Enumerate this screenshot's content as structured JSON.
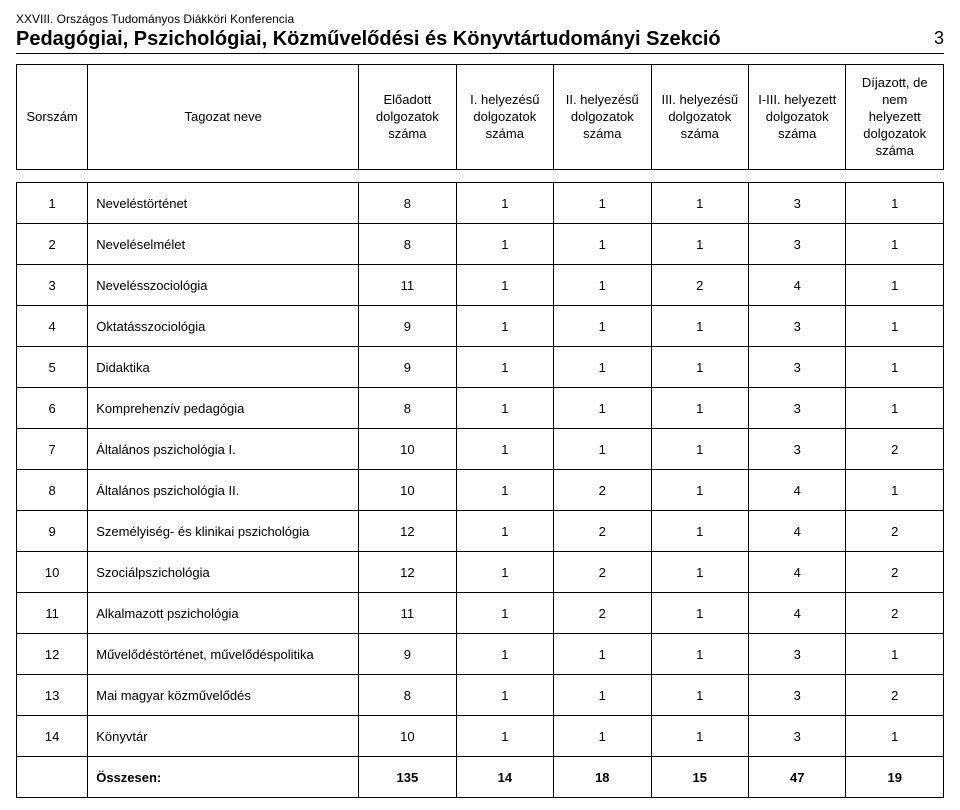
{
  "header": {
    "pre_title": "XXVIII. Országos Tudományos Diákköri Konferencia",
    "title": "Pedagógiai, Pszichológiai, Közművelődési és Könyvtártudományi Szekció",
    "page_number": "3"
  },
  "table": {
    "columns": [
      "Sorszám",
      "Tagozat neve",
      "Előadott\ndolgozatok\nszáma",
      "I. helyezésű\ndolgozatok\nszáma",
      "II. helyezésű\ndolgozatok\nszáma",
      "III. helyezésű\ndolgozatok\nszáma",
      "I-III. helyezett\ndolgozatok\nszáma",
      "Díjazott,\nde nem helyezett\ndolgozatok száma"
    ],
    "rows": [
      [
        "1",
        "Neveléstörténet",
        "8",
        "1",
        "1",
        "1",
        "3",
        "1"
      ],
      [
        "2",
        "Neveléselmélet",
        "8",
        "1",
        "1",
        "1",
        "3",
        "1"
      ],
      [
        "3",
        "Nevelésszociológia",
        "11",
        "1",
        "1",
        "2",
        "4",
        "1"
      ],
      [
        "4",
        "Oktatásszociológia",
        "9",
        "1",
        "1",
        "1",
        "3",
        "1"
      ],
      [
        "5",
        "Didaktika",
        "9",
        "1",
        "1",
        "1",
        "3",
        "1"
      ],
      [
        "6",
        "Komprehenzív pedagógia",
        "8",
        "1",
        "1",
        "1",
        "3",
        "1"
      ],
      [
        "7",
        "Általános pszichológia I.",
        "10",
        "1",
        "1",
        "1",
        "3",
        "2"
      ],
      [
        "8",
        "Általános pszichológia II.",
        "10",
        "1",
        "2",
        "1",
        "4",
        "1"
      ],
      [
        "9",
        "Személyiség- és klinikai pszichológia",
        "12",
        "1",
        "2",
        "1",
        "4",
        "2"
      ],
      [
        "10",
        "Szociálpszichológia",
        "12",
        "1",
        "2",
        "1",
        "4",
        "2"
      ],
      [
        "11",
        "Alkalmazott pszichológia",
        "11",
        "1",
        "2",
        "1",
        "4",
        "2"
      ],
      [
        "12",
        "Művelődéstörténet, művelődéspolitika",
        "9",
        "1",
        "1",
        "1",
        "3",
        "1"
      ],
      [
        "13",
        "Mai magyar közművelődés",
        "8",
        "1",
        "1",
        "1",
        "3",
        "2"
      ],
      [
        "14",
        "Könyvtár",
        "10",
        "1",
        "1",
        "1",
        "3",
        "1"
      ]
    ],
    "totals": [
      "",
      "Összesen:",
      "135",
      "14",
      "18",
      "15",
      "47",
      "19"
    ]
  }
}
